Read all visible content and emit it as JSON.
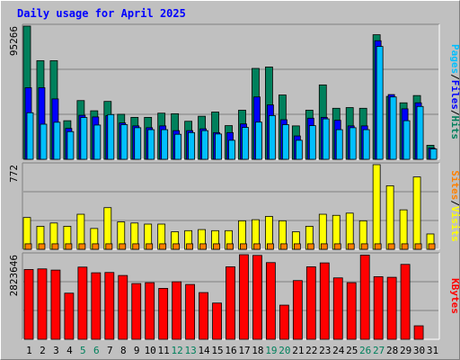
{
  "chart_data": [
    {
      "type": "bar",
      "title": "Daily usage for April 2025",
      "ylabel": [
        "Pages",
        "Files",
        "Hits"
      ],
      "ymax_label": "95266",
      "ylim": [
        0,
        95266
      ],
      "series": [
        {
          "name": "Hits",
          "color": "#00805c",
          "values": [
            95266,
            70526,
            70526,
            27600,
            42000,
            34700,
            41400,
            32200,
            30000,
            30000,
            33000,
            32600,
            27200,
            30800,
            33800,
            24100,
            35100,
            65000,
            66000,
            46000,
            23900,
            35100,
            53200,
            36500,
            37000,
            36500,
            89100,
            45000,
            40400,
            45600,
            10000
          ]
        },
        {
          "name": "Files",
          "color": "#0000ff",
          "values": [
            51200,
            51200,
            43200,
            22100,
            31500,
            30300,
            31200,
            26000,
            23900,
            22600,
            23900,
            20500,
            20500,
            21800,
            19100,
            19100,
            25300,
            44600,
            38900,
            28300,
            16700,
            29400,
            30000,
            27900,
            23900,
            23900,
            84800,
            46300,
            36100,
            40400,
            8100
          ]
        },
        {
          "name": "Pages",
          "color": "#00bfff",
          "values": [
            33300,
            25100,
            26500,
            19800,
            29900,
            24500,
            32000,
            24800,
            22600,
            21200,
            21200,
            17900,
            19100,
            20500,
            18100,
            13600,
            22800,
            26600,
            31300,
            24800,
            13600,
            24100,
            28900,
            21200,
            22600,
            21200,
            80700,
            44600,
            27600,
            37800,
            7400
          ]
        }
      ]
    },
    {
      "type": "bar",
      "ylabel": [
        "Sites",
        "Visits"
      ],
      "ymax_label": "772",
      "ylim": [
        0,
        772
      ],
      "series": [
        {
          "name": "Visits",
          "color": "#ffff00",
          "values": [
            290,
            210,
            240,
            210,
            320,
            190,
            380,
            250,
            240,
            230,
            230,
            160,
            170,
            180,
            170,
            170,
            260,
            270,
            300,
            260,
            160,
            210,
            320,
            310,
            330,
            260,
            772,
            580,
            360,
            660,
            140
          ]
        },
        {
          "name": "Sites",
          "color": "#ff8000",
          "values": [
            50,
            50,
            50,
            50,
            50,
            50,
            50,
            50,
            50,
            50,
            50,
            50,
            50,
            50,
            50,
            50,
            50,
            50,
            50,
            50,
            50,
            50,
            50,
            50,
            50,
            50,
            50,
            50,
            50,
            50,
            50
          ]
        }
      ]
    },
    {
      "type": "bar",
      "ylabel": [
        "KBytes"
      ],
      "ymax_label": "2823646",
      "ylim": [
        0,
        2823646
      ],
      "series": [
        {
          "name": "KBytes",
          "color": "#ff0000",
          "values": [
            2330000,
            2350000,
            2310000,
            1540000,
            2410000,
            2220000,
            2230000,
            2130000,
            1860000,
            1890000,
            1700000,
            1920000,
            1830000,
            1560000,
            1210000,
            2420000,
            2823646,
            2800000,
            2560000,
            1140000,
            1960000,
            2420000,
            2550000,
            2050000,
            1890000,
            2810000,
            2090000,
            2070000,
            2500000,
            450000,
            0
          ]
        }
      ]
    }
  ],
  "days": [
    "1",
    "2",
    "3",
    "4",
    "5",
    "6",
    "7",
    "8",
    "9",
    "10",
    "11",
    "12",
    "13",
    "14",
    "15",
    "16",
    "17",
    "18",
    "19",
    "20",
    "21",
    "22",
    "23",
    "24",
    "25",
    "26",
    "27",
    "28",
    "29",
    "30",
    "31"
  ],
  "weekend_days": [
    "5",
    "6",
    "12",
    "13",
    "19",
    "20",
    "26",
    "27"
  ],
  "colors": {
    "background": "#c0c0c0",
    "plot_bg": "#c0c0c0",
    "grid": "#808080",
    "title": "#0000ff",
    "weekday_label": "#000000",
    "weekend_label": "#00805c"
  }
}
